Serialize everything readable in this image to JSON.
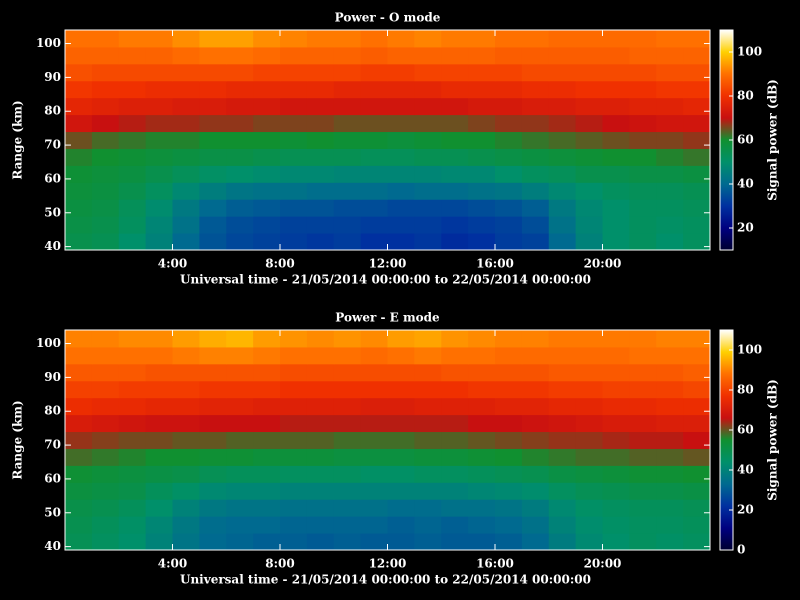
{
  "chart_data": [
    {
      "type": "heatmap",
      "title": "Power - O mode",
      "xlabel": "Universal time - 21/05/2014 00:00:00 to 22/05/2014 00:00:00",
      "ylabel": "Range (km)",
      "colorbar_label": "Signal power (dB)",
      "xlim": [
        0,
        24
      ],
      "ylim": [
        39,
        104
      ],
      "zlim": [
        10,
        110
      ],
      "xticks": [
        {
          "value": 4,
          "label": "4:00"
        },
        {
          "value": 8,
          "label": "8:00"
        },
        {
          "value": 12,
          "label": "12:00"
        },
        {
          "value": 16,
          "label": "16:00"
        },
        {
          "value": 20,
          "label": "20:00"
        }
      ],
      "yticks": [
        40,
        50,
        60,
        70,
        80,
        90,
        100
      ],
      "zticks": [
        20,
        40,
        60,
        80,
        100
      ],
      "colormap": [
        "#000030",
        "#000080",
        "#0030a0",
        "#006a90",
        "#00906a",
        "#109030",
        "#c81010",
        "#f03000",
        "#ff7000",
        "#ffd000",
        "#ffffff"
      ],
      "x": [
        0.5,
        1.5,
        2.5,
        3.5,
        4.5,
        5.5,
        6.5,
        7.5,
        8.5,
        9.5,
        10.5,
        11.5,
        12.5,
        13.5,
        14.5,
        15.5,
        16.5,
        17.5,
        18.5,
        19.5,
        20.5,
        21.5,
        22.5,
        23.5
      ],
      "y": [
        41.5,
        46.5,
        51.5,
        56.5,
        61.5,
        66.5,
        71.5,
        76.5,
        81.5,
        86.5,
        91.5,
        96.5,
        101.5
      ],
      "z": [
        [
          55,
          54,
          50,
          46,
          40,
          36,
          34,
          33,
          32,
          31,
          32,
          30,
          30,
          31,
          29,
          30,
          32,
          33,
          40,
          46,
          50,
          52,
          50,
          52
        ],
        [
          56,
          55,
          52,
          47,
          42,
          37,
          35,
          34,
          33,
          33,
          33,
          32,
          32,
          32,
          31,
          32,
          33,
          35,
          42,
          47,
          50,
          52,
          51,
          52
        ],
        [
          57,
          56,
          53,
          49,
          44,
          40,
          38,
          37,
          36,
          36,
          35,
          35,
          34,
          34,
          34,
          35,
          36,
          38,
          44,
          48,
          50,
          52,
          52,
          53
        ],
        [
          58,
          57,
          55,
          52,
          48,
          45,
          43,
          42,
          42,
          41,
          41,
          41,
          40,
          41,
          41,
          42,
          43,
          45,
          48,
          50,
          52,
          53,
          53,
          54
        ],
        [
          59,
          58,
          57,
          55,
          53,
          51,
          50,
          49,
          48,
          48,
          47,
          47,
          47,
          47,
          48,
          48,
          50,
          52,
          53,
          55,
          55,
          56,
          56,
          57
        ],
        [
          61,
          60,
          59,
          58,
          57,
          56,
          56,
          55,
          54,
          54,
          54,
          53,
          53,
          54,
          54,
          55,
          56,
          57,
          58,
          59,
          60,
          60,
          61,
          62
        ],
        [
          65,
          63,
          62,
          61,
          61,
          60,
          60,
          60,
          59,
          60,
          59,
          59,
          58,
          59,
          60,
          60,
          61,
          62,
          63,
          64,
          65,
          66,
          66,
          67
        ],
        [
          72,
          70,
          69,
          68,
          68,
          67,
          67,
          66,
          66,
          66,
          65,
          65,
          65,
          65,
          65,
          66,
          67,
          67,
          68,
          69,
          70,
          71,
          72,
          72
        ],
        [
          77,
          76,
          75,
          75,
          74,
          74,
          73,
          73,
          72,
          72,
          72,
          72,
          72,
          72,
          72,
          73,
          73,
          74,
          74,
          75,
          75,
          76,
          76,
          77
        ],
        [
          81,
          80,
          80,
          79,
          79,
          79,
          78,
          78,
          78,
          78,
          77,
          77,
          77,
          77,
          78,
          78,
          78,
          79,
          79,
          80,
          80,
          80,
          81,
          81
        ],
        [
          85,
          84,
          84,
          84,
          84,
          84,
          84,
          83,
          83,
          83,
          83,
          82,
          82,
          83,
          83,
          83,
          83,
          84,
          84,
          84,
          84,
          84,
          85,
          85
        ],
        [
          88,
          88,
          88,
          88,
          89,
          90,
          90,
          89,
          88,
          88,
          88,
          87,
          88,
          88,
          88,
          88,
          87,
          87,
          87,
          87,
          87,
          88,
          88,
          88
        ],
        [
          90,
          90,
          91,
          91,
          93,
          95,
          95,
          93,
          92,
          91,
          91,
          90,
          91,
          92,
          91,
          91,
          90,
          90,
          89,
          89,
          89,
          89,
          90,
          90
        ]
      ]
    },
    {
      "type": "heatmap",
      "title": "Power - E mode",
      "xlabel": "Universal time - 21/05/2014 00:00:00 to 22/05/2014 00:00:00",
      "ylabel": "Range (km)",
      "colorbar_label": "Signal power (dB)",
      "xlim": [
        0,
        24
      ],
      "ylim": [
        39,
        104
      ],
      "zlim": [
        0,
        110
      ],
      "xticks": [
        {
          "value": 4,
          "label": "4:00"
        },
        {
          "value": 8,
          "label": "8:00"
        },
        {
          "value": 12,
          "label": "12:00"
        },
        {
          "value": 16,
          "label": "16:00"
        },
        {
          "value": 20,
          "label": "20:00"
        }
      ],
      "yticks": [
        40,
        50,
        60,
        70,
        80,
        90,
        100
      ],
      "zticks": [
        0,
        20,
        40,
        60,
        80,
        100
      ],
      "colormap": [
        "#000030",
        "#000080",
        "#0030a0",
        "#006a90",
        "#00906a",
        "#109030",
        "#c81010",
        "#f03000",
        "#ff7000",
        "#ffd000",
        "#ffffff"
      ],
      "x": [
        0.5,
        1.5,
        2.5,
        3.5,
        4.5,
        5.5,
        6.5,
        7.5,
        8.5,
        9.5,
        10.5,
        11.5,
        12.5,
        13.5,
        14.5,
        15.5,
        16.5,
        17.5,
        18.5,
        19.5,
        20.5,
        21.5,
        22.5,
        23.5
      ],
      "y": [
        41.5,
        46.5,
        51.5,
        56.5,
        61.5,
        66.5,
        71.5,
        76.5,
        81.5,
        86.5,
        91.5,
        96.5,
        101.5
      ],
      "z": [
        [
          48,
          46,
          44,
          40,
          36,
          33,
          32,
          31,
          31,
          30,
          31,
          30,
          30,
          31,
          30,
          30,
          31,
          33,
          38,
          42,
          44,
          46,
          45,
          46
        ],
        [
          49,
          47,
          45,
          41,
          37,
          34,
          33,
          33,
          32,
          32,
          32,
          32,
          31,
          32,
          31,
          32,
          33,
          35,
          40,
          43,
          45,
          46,
          46,
          47
        ],
        [
          50,
          49,
          47,
          44,
          40,
          37,
          36,
          36,
          35,
          35,
          35,
          35,
          34,
          34,
          35,
          35,
          36,
          38,
          42,
          45,
          46,
          47,
          47,
          48
        ],
        [
          52,
          51,
          50,
          47,
          45,
          42,
          41,
          41,
          40,
          40,
          40,
          40,
          40,
          40,
          40,
          41,
          42,
          43,
          46,
          48,
          49,
          50,
          50,
          51
        ],
        [
          54,
          53,
          52,
          51,
          50,
          48,
          47,
          47,
          46,
          46,
          46,
          45,
          45,
          46,
          46,
          47,
          48,
          49,
          51,
          52,
          53,
          54,
          54,
          55
        ],
        [
          58,
          57,
          56,
          55,
          55,
          54,
          54,
          53,
          53,
          53,
          52,
          52,
          52,
          53,
          53,
          54,
          55,
          56,
          57,
          58,
          58,
          59,
          59,
          60
        ],
        [
          63,
          62,
          61,
          61,
          60,
          60,
          59,
          59,
          59,
          59,
          58,
          58,
          58,
          59,
          59,
          60,
          61,
          62,
          63,
          63,
          64,
          65,
          65,
          66
        ],
        [
          70,
          69,
          68,
          67,
          67,
          66,
          66,
          66,
          65,
          65,
          65,
          65,
          65,
          65,
          65,
          66,
          66,
          67,
          68,
          69,
          70,
          70,
          71,
          71
        ],
        [
          76,
          75,
          75,
          74,
          74,
          73,
          73,
          72,
          72,
          72,
          72,
          71,
          71,
          72,
          72,
          72,
          73,
          73,
          74,
          74,
          75,
          75,
          76,
          76
        ],
        [
          80,
          80,
          79,
          79,
          79,
          78,
          78,
          78,
          77,
          77,
          77,
          77,
          77,
          77,
          77,
          78,
          78,
          78,
          79,
          79,
          80,
          80,
          80,
          81
        ],
        [
          84,
          84,
          84,
          83,
          83,
          83,
          83,
          83,
          82,
          82,
          82,
          82,
          82,
          82,
          83,
          83,
          83,
          83,
          84,
          84,
          84,
          84,
          84,
          85
        ],
        [
          88,
          88,
          88,
          88,
          89,
          90,
          90,
          89,
          88,
          88,
          88,
          87,
          88,
          89,
          88,
          88,
          87,
          87,
          87,
          87,
          87,
          88,
          88,
          88
        ],
        [
          90,
          90,
          91,
          91,
          93,
          95,
          96,
          93,
          92,
          91,
          92,
          91,
          93,
          94,
          92,
          91,
          90,
          90,
          89,
          89,
          89,
          89,
          90,
          90
        ]
      ]
    }
  ]
}
